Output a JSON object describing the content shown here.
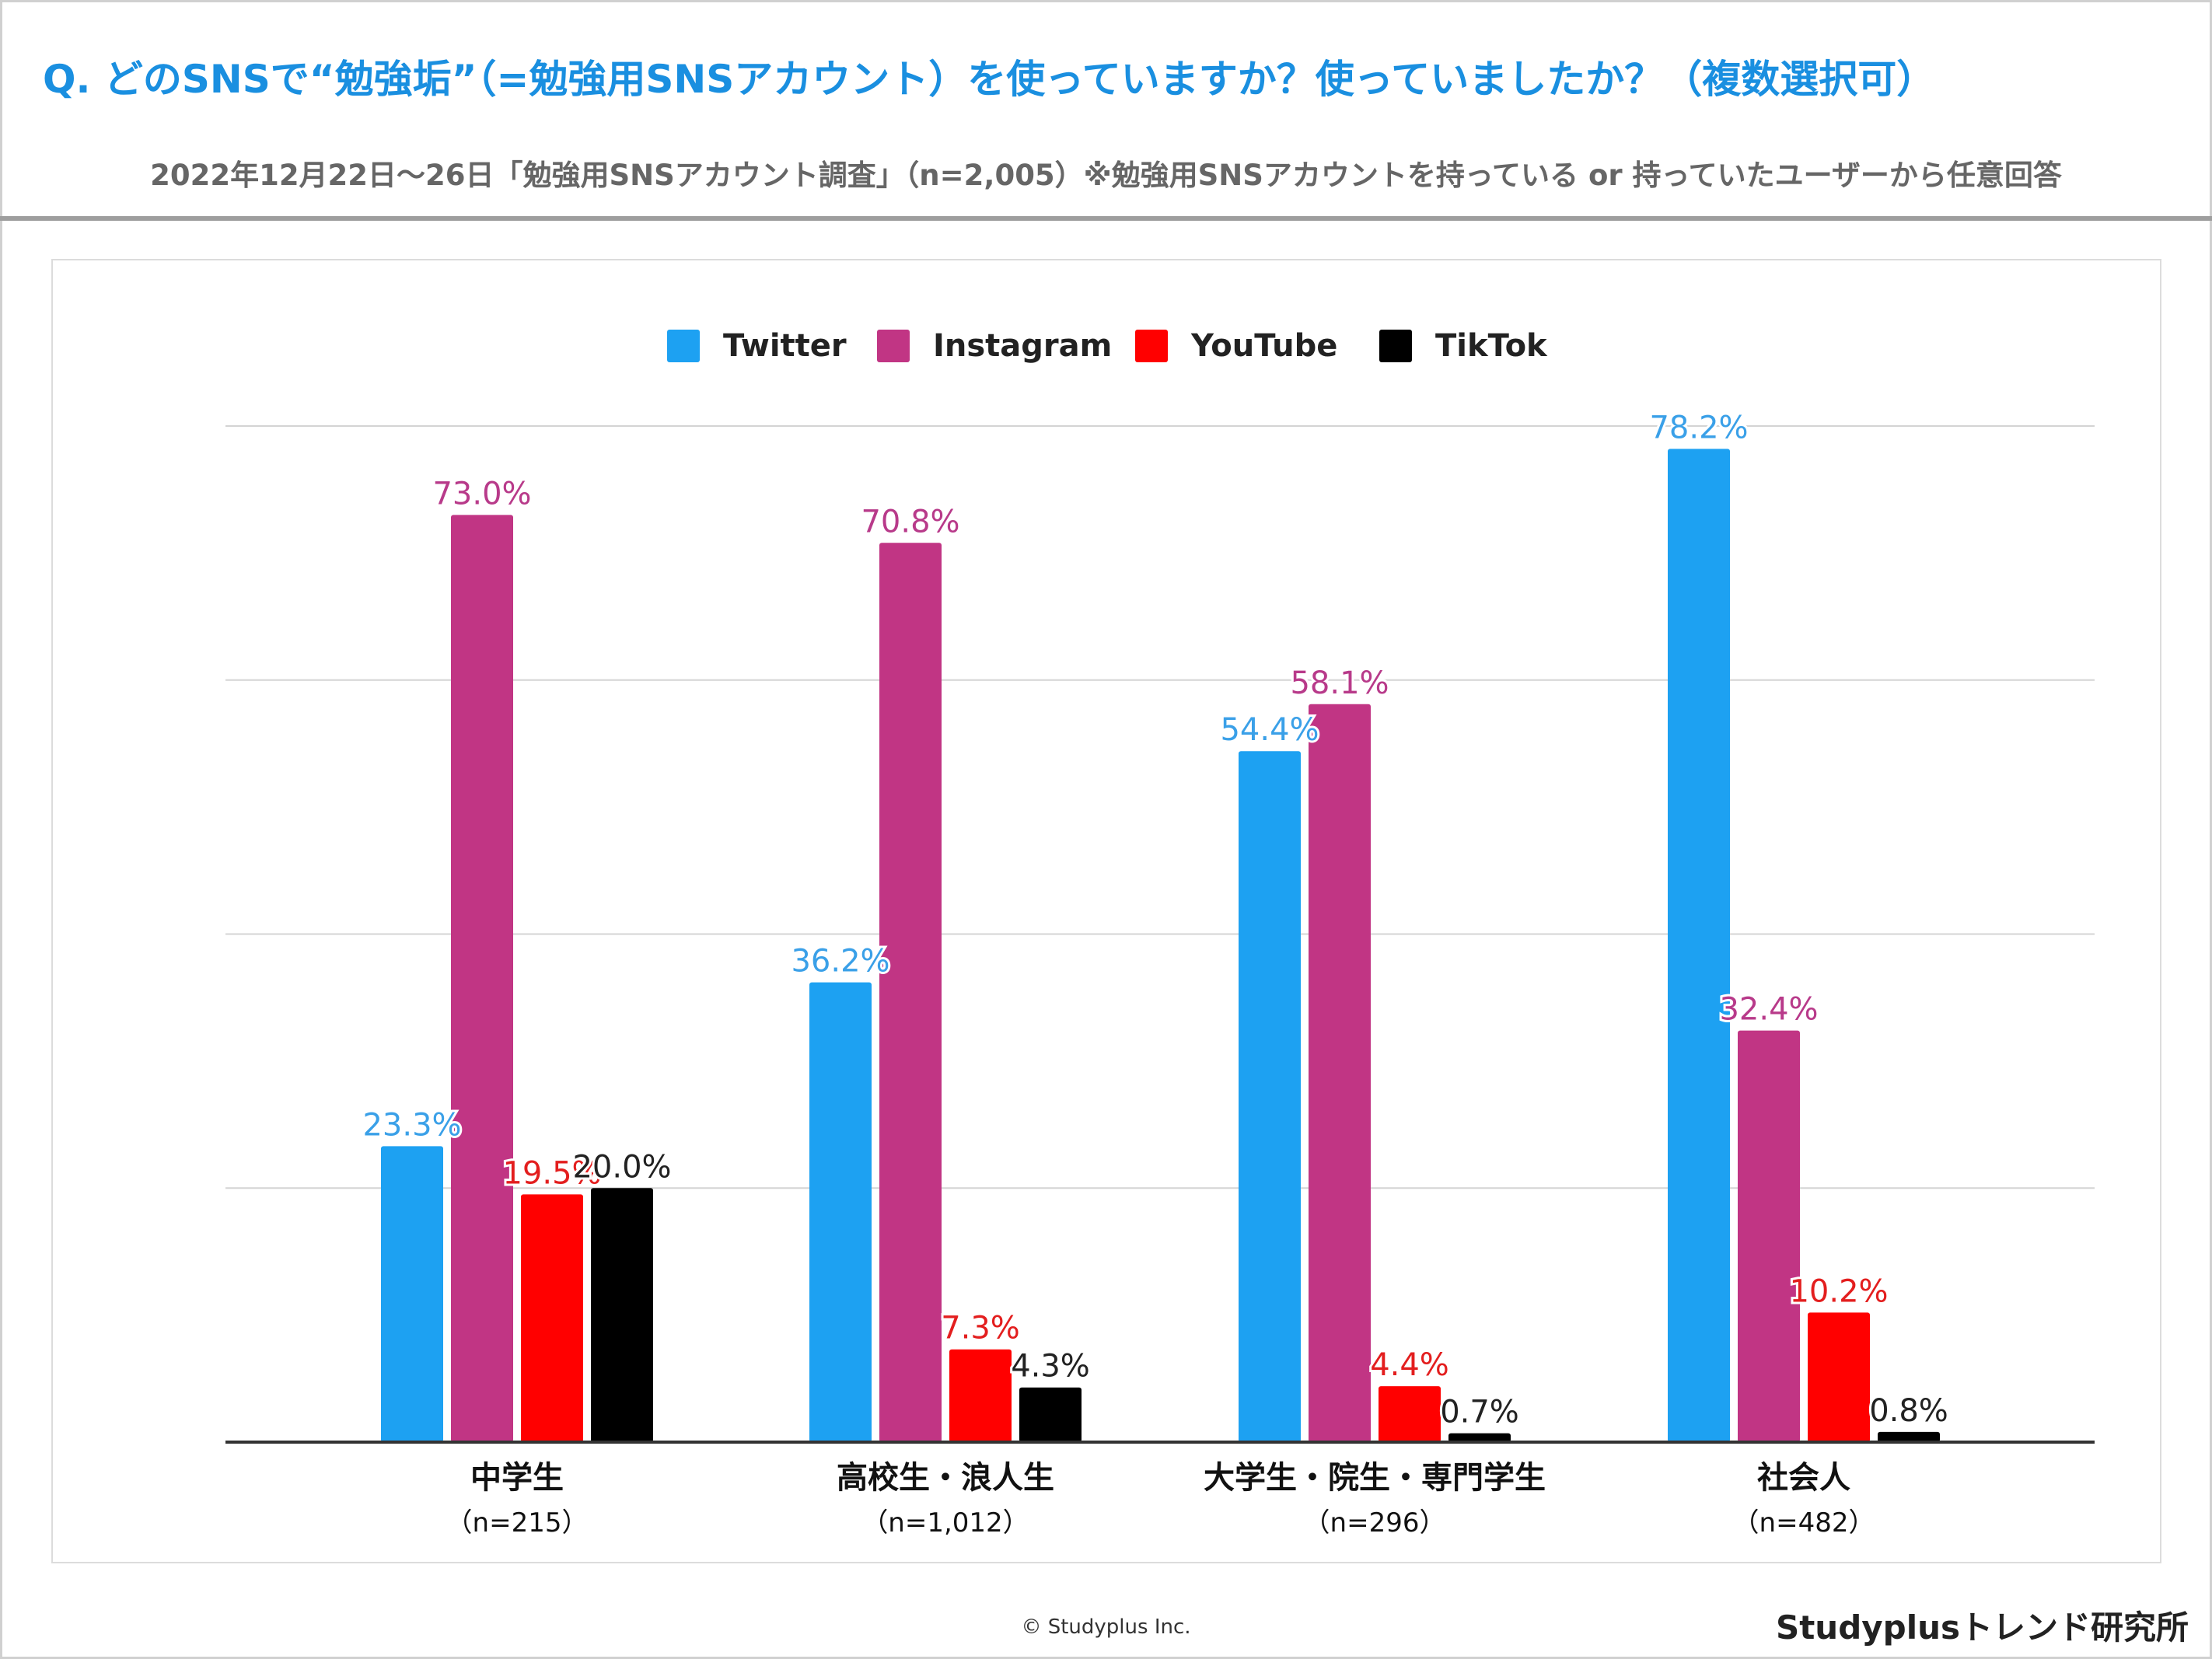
{
  "header": {
    "title": "Q. どのSNSで“勉強垢”（=勉強用SNSアカウント）を使っていますか？使っていましたか？（複数選択可）",
    "subtitle": "2022年12月22日〜26日「勉強用SNSアカウント調査」（n=2,005）※勉強用SNSアカウントを持っている or 持っていたユーザーから任意回答"
  },
  "chart_data": {
    "type": "bar",
    "categories": [
      "中学生",
      "高校生・浪人生",
      "大学生・院生・専門学生",
      "社会人"
    ],
    "category_notes": [
      "（n=215）",
      "（n=1,012）",
      "（n=296）",
      "（n=482）"
    ],
    "series": [
      {
        "name": "Twitter",
        "color": "#1da1f2",
        "values": [
          23.3,
          36.2,
          54.4,
          78.2
        ],
        "labels": [
          "23.3%",
          "36.2%",
          "54.4%",
          "78.2%"
        ]
      },
      {
        "name": "Instagram",
        "color": "#c13584",
        "values": [
          73.0,
          70.8,
          58.1,
          32.4
        ],
        "labels": [
          "73.0%",
          "70.8%",
          "58.1%",
          "32.4%"
        ]
      },
      {
        "name": "YouTube",
        "color": "#ff0000",
        "values": [
          19.5,
          7.3,
          4.4,
          10.2
        ],
        "labels": [
          "19.5%",
          "7.3%",
          "4.4%",
          "10.2%"
        ]
      },
      {
        "name": "TikTok",
        "color": "#000000",
        "values": [
          20.0,
          4.3,
          0.7,
          0.8
        ],
        "labels": [
          "20.0%",
          "4.3%",
          "0.7%",
          "0.8%"
        ]
      }
    ],
    "label_colors": [
      "#3aa0e8",
      "#b83a8a",
      "#e31e1e",
      "#222222"
    ],
    "ylim": [
      0,
      80
    ],
    "gridlines": [
      20,
      40,
      60,
      80
    ],
    "legend": "top-center"
  },
  "footer": {
    "copyright": "© Studyplus Inc.",
    "brand": "Studyplusトレンド研究所"
  }
}
